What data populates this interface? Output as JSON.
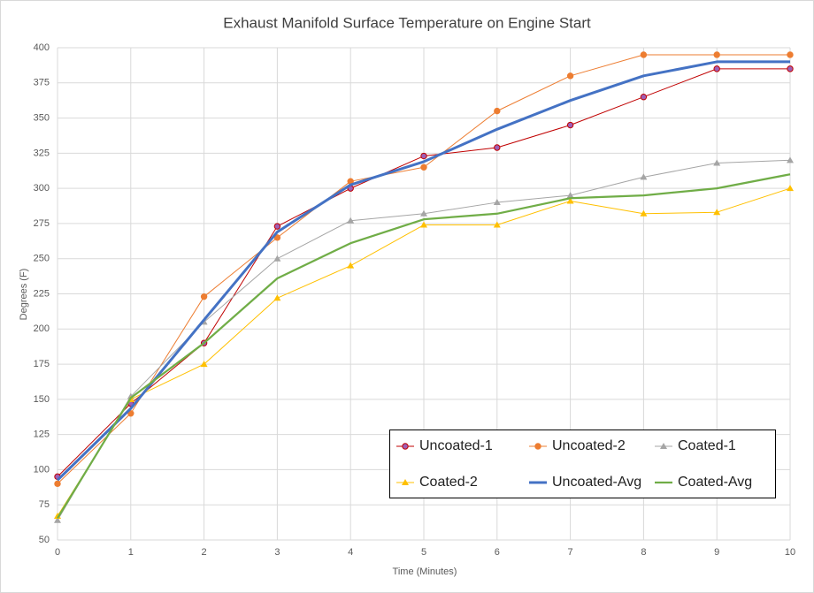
{
  "chart_data": {
    "type": "line",
    "title": "Exhaust Manifold Surface Temperature on Engine Start",
    "x_label": "Time (Minutes)",
    "y_label": "Degrees (F)",
    "x": [
      0,
      1,
      2,
      3,
      4,
      5,
      6,
      7,
      8,
      9,
      10
    ],
    "xlim": [
      0,
      10
    ],
    "xticks": [
      0,
      1,
      2,
      3,
      4,
      5,
      6,
      7,
      8,
      9,
      10
    ],
    "ylim": [
      50,
      400
    ],
    "yticks": [
      50,
      75,
      100,
      125,
      150,
      175,
      200,
      225,
      250,
      275,
      300,
      325,
      350,
      375,
      400
    ],
    "grid": true,
    "legend": "bottom-right",
    "series": [
      {
        "name": "Uncoated-1",
        "color": "#c00000",
        "marker": "circle",
        "marker_fill": "#9e5fb5",
        "width": 1,
        "values": [
          95,
          147,
          190,
          273,
          300,
          323,
          329,
          345,
          365,
          385,
          385
        ]
      },
      {
        "name": "Uncoated-2",
        "color": "#ed7d31",
        "marker": "circle",
        "marker_fill": "#ed7d31",
        "width": 1,
        "values": [
          90,
          140,
          223,
          265,
          305,
          315,
          355,
          380,
          395,
          395,
          395
        ]
      },
      {
        "name": "Coated-1",
        "color": "#a5a5a5",
        "marker": "triangle",
        "marker_fill": "#a5a5a5",
        "width": 1,
        "values": [
          64,
          152,
          205,
          250,
          277,
          282,
          290,
          295,
          308,
          318,
          320
        ]
      },
      {
        "name": "Coated-2",
        "color": "#ffc000",
        "marker": "triangle",
        "marker_fill": "#ffc000",
        "width": 1,
        "values": [
          67,
          150,
          175,
          222,
          245,
          274,
          274,
          291,
          282,
          283,
          300
        ]
      },
      {
        "name": "Uncoated-Avg",
        "color": "#4472c4",
        "marker": "none",
        "width": 3,
        "values": [
          92.5,
          143.5,
          206.5,
          269,
          302.5,
          319,
          342,
          362.5,
          380,
          390,
          390
        ]
      },
      {
        "name": "Coated-Avg",
        "color": "#70ad47",
        "marker": "none",
        "width": 2.25,
        "values": [
          65.5,
          151,
          190,
          236,
          261,
          278,
          282,
          293,
          295,
          300,
          310
        ]
      }
    ]
  }
}
